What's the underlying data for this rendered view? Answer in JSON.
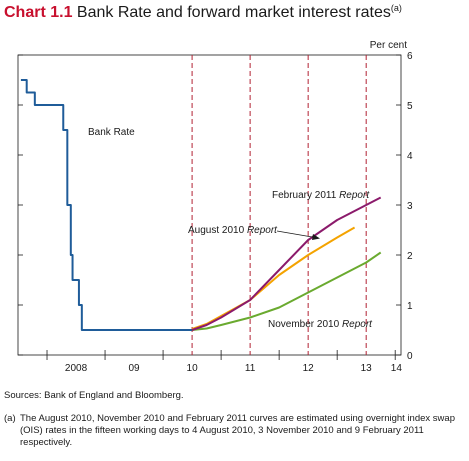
{
  "title": {
    "number": "Chart 1.1",
    "text": "Bank Rate and forward market interest rates",
    "footnote_marker": "(a)"
  },
  "chart_data": {
    "type": "line",
    "ylabel": "Per cent",
    "ylim": [
      0,
      6
    ],
    "yticks": [
      "0",
      "1",
      "2",
      "3",
      "4",
      "5",
      "6"
    ],
    "xlabels": [
      "2008",
      "09",
      "10",
      "11",
      "12",
      "13",
      "14"
    ],
    "x_range": [
      2007.5,
      2014.1
    ],
    "vertical_dashed_lines": [
      2010.5,
      2011.5,
      2012.5,
      2013.5
    ],
    "vertical_line_color": "#b22234",
    "series": [
      {
        "name": "Bank Rate",
        "color": "#1f5c99",
        "step": true,
        "points": [
          [
            2007.55,
            5.5
          ],
          [
            2007.65,
            5.25
          ],
          [
            2007.79,
            5.0
          ],
          [
            2008.28,
            4.5
          ],
          [
            2008.35,
            3.0
          ],
          [
            2008.41,
            2.0
          ],
          [
            2008.44,
            1.5
          ],
          [
            2008.55,
            1.0
          ],
          [
            2008.6,
            0.5
          ],
          [
            2010.5,
            0.5
          ]
        ]
      },
      {
        "name": "August 2010 Report",
        "color": "#f4a300",
        "points": [
          [
            2010.5,
            0.52
          ],
          [
            2010.75,
            0.62
          ],
          [
            2011.0,
            0.78
          ],
          [
            2011.5,
            1.1
          ],
          [
            2012.0,
            1.6
          ],
          [
            2012.5,
            2.0
          ],
          [
            2013.0,
            2.35
          ],
          [
            2013.3,
            2.55
          ]
        ]
      },
      {
        "name": "November 2010 Report",
        "color": "#6aaa2f",
        "points": [
          [
            2010.5,
            0.5
          ],
          [
            2010.75,
            0.53
          ],
          [
            2011.0,
            0.6
          ],
          [
            2011.5,
            0.75
          ],
          [
            2012.0,
            0.95
          ],
          [
            2012.5,
            1.25
          ],
          [
            2013.0,
            1.55
          ],
          [
            2013.5,
            1.85
          ],
          [
            2013.75,
            2.05
          ]
        ]
      },
      {
        "name": "February 2011 Report",
        "color": "#8b1a6b",
        "points": [
          [
            2010.5,
            0.5
          ],
          [
            2010.75,
            0.6
          ],
          [
            2011.0,
            0.75
          ],
          [
            2011.5,
            1.1
          ],
          [
            2012.0,
            1.7
          ],
          [
            2012.5,
            2.3
          ],
          [
            2013.0,
            2.7
          ],
          [
            2013.5,
            3.0
          ],
          [
            2013.75,
            3.15
          ]
        ]
      }
    ],
    "annotations": [
      {
        "label": "Bank Rate",
        "emph": ""
      },
      {
        "label": "February 2011 ",
        "emph": "Report"
      },
      {
        "label": "August 2010 ",
        "emph": "Report"
      },
      {
        "label": "November 2010 ",
        "emph": "Report"
      }
    ]
  },
  "sources": "Sources:  Bank of England and Bloomberg.",
  "footnote": {
    "marker": "(a)",
    "text": "The August 2010, November 2010 and February 2011 curves are estimated using overnight index swap (OIS) rates in the fifteen working days to 4 August 2010, 3 November 2010 and 9 February 2011 respectively."
  }
}
